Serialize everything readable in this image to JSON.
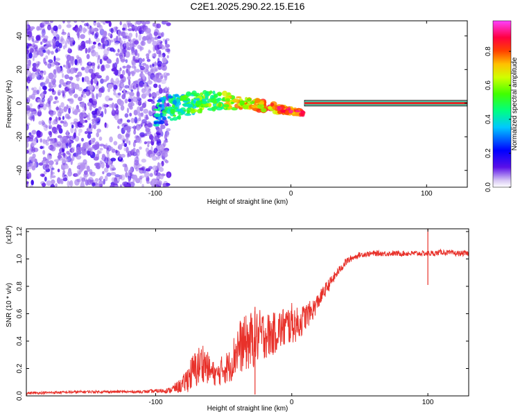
{
  "figure_title": "C2E1.2025.290.22.15.E16",
  "colorbar": {
    "label": "Normalized spectral amplitude",
    "ticks": [
      "0.0",
      "0.2",
      "0.4",
      "0.6",
      "0.8"
    ],
    "tick_values": [
      0.0,
      0.2,
      0.4,
      0.6,
      0.8
    ],
    "range": [
      0,
      0.98
    ]
  },
  "chart_data": [
    {
      "type": "heatmap",
      "title": "C2E1.2025.290.22.15.E16",
      "xlabel": "Height of straight line (km)",
      "ylabel": "Frequency (Hz)",
      "xlim": [
        -195,
        130
      ],
      "ylim": [
        -50,
        49
      ],
      "xticks": [
        -100,
        0,
        100
      ],
      "xtick_labels": [
        "-100",
        "0",
        "100"
      ],
      "yticks": [
        -40,
        -20,
        0,
        20,
        40
      ],
      "ytick_labels": [
        "-40",
        "-20",
        "0",
        "20",
        "40"
      ],
      "colormap": "rainbow (purple=0 to magenta=1)",
      "features": [
        {
          "name": "noise region",
          "x_range": [
            -195,
            -90
          ],
          "freq_range": [
            -50,
            49
          ],
          "amplitude": "low (0.0-0.2)"
        },
        {
          "name": "transition band",
          "x_range": [
            -100,
            10
          ],
          "freq_center_start": -5,
          "freq_center_end": 0,
          "amplitude": "0.3-0.9"
        },
        {
          "name": "steady signal line",
          "x_range": [
            10,
            130
          ],
          "freq": 0,
          "amplitude": 0.9
        }
      ]
    },
    {
      "type": "line",
      "xlabel": "Height of straight line (km)",
      "ylabel": "SNR (10 * v/v)",
      "y_scale_label": "(x10",
      "y_scale_exp": "4",
      "y_scale_close": ")",
      "xlim": [
        -195,
        130
      ],
      "ylim": [
        0,
        1.22
      ],
      "xticks": [
        -100,
        0,
        100
      ],
      "xtick_labels": [
        "-100",
        "0",
        "100"
      ],
      "yticks": [
        0,
        0.2,
        0.4,
        0.6,
        0.8,
        1.0,
        1.2
      ],
      "ytick_labels": [
        "0.0",
        "0.2",
        "0.4",
        "0.6",
        "0.8",
        "1.0",
        "1.2"
      ],
      "color": "#e8312a",
      "series": [
        {
          "name": "SNR",
          "x": [
            -195,
            -150,
            -110,
            -90,
            -80,
            -75,
            -70,
            -65,
            -60,
            -55,
            -50,
            -45,
            -40,
            -35,
            -30,
            -25,
            -20,
            -15,
            -10,
            -5,
            0,
            5,
            10,
            15,
            20,
            25,
            30,
            35,
            40,
            45,
            50,
            60,
            70,
            80,
            90,
            95,
            100,
            105,
            110,
            120,
            130
          ],
          "y": [
            0.02,
            0.03,
            0.03,
            0.04,
            0.08,
            0.15,
            0.2,
            0.25,
            0.18,
            0.15,
            0.2,
            0.22,
            0.35,
            0.38,
            0.4,
            0.43,
            0.45,
            0.44,
            0.48,
            0.5,
            0.53,
            0.52,
            0.58,
            0.62,
            0.7,
            0.78,
            0.85,
            0.92,
            0.98,
            1.01,
            1.03,
            1.04,
            1.04,
            1.04,
            1.04,
            1.04,
            1.04,
            1.04,
            1.05,
            1.04,
            1.04
          ],
          "noise_amplitude": [
            0.01,
            0.01,
            0.01,
            0.02,
            0.06,
            0.12,
            0.15,
            0.15,
            0.1,
            0.08,
            0.12,
            0.12,
            0.2,
            0.2,
            0.22,
            0.2,
            0.18,
            0.16,
            0.15,
            0.16,
            0.15,
            0.12,
            0.1,
            0.08,
            0.06,
            0.05,
            0.04,
            0.03,
            0.03,
            0.02,
            0.02,
            0.02,
            0.02,
            0.02,
            0.02,
            0.02,
            0.02,
            0.02,
            0.02,
            0.02,
            0.02
          ]
        }
      ],
      "annotations": [
        {
          "x": 100,
          "y_low": 0.81,
          "y_high": 1.22,
          "note": "spike"
        },
        {
          "x": -27,
          "y_low": 0.01,
          "y_high": 0.65,
          "note": "dropout spike"
        }
      ]
    }
  ]
}
